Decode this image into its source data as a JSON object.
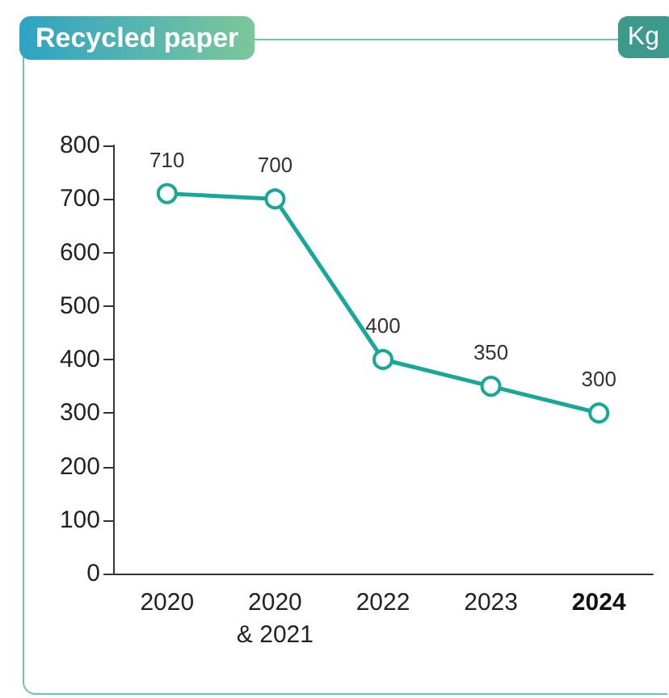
{
  "chart_data": {
    "type": "line",
    "title": "Recycled paper",
    "ylabel": "Kg",
    "categories": [
      "2020",
      "2020\n& 2021",
      "2022",
      "2023",
      "2024"
    ],
    "series": [
      {
        "color": "#17a89a",
        "values": [
          710,
          700,
          400,
          350,
          300
        ]
      }
    ],
    "ylim": [
      0,
      800
    ],
    "yticks": [
      0,
      100,
      200,
      300,
      400,
      500,
      600,
      700,
      800
    ],
    "marker": "circle",
    "line_style": "solid",
    "data_labels": true,
    "grid": false
  }
}
